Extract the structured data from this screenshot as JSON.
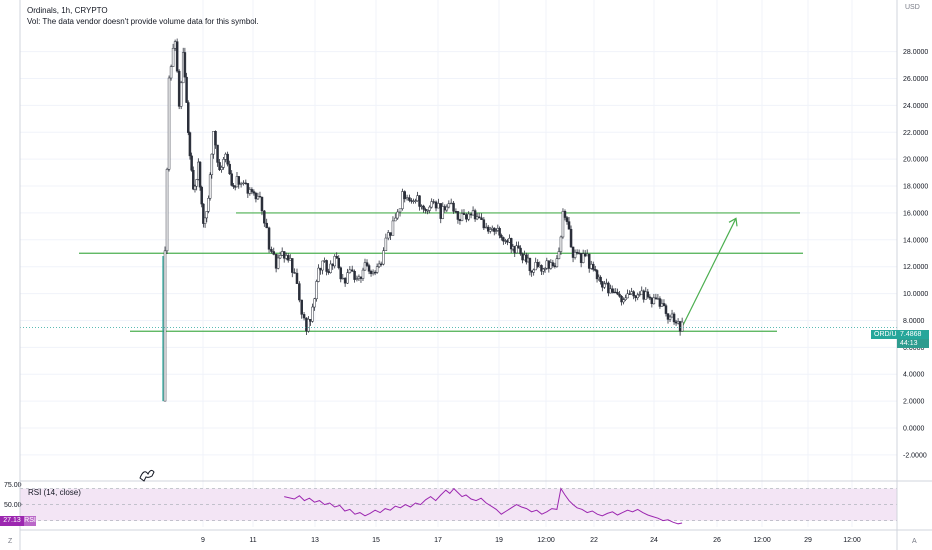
{
  "legend": {
    "symbol_line": "Ordinals, 1h, CRYPTO",
    "volume_note": "Vol: The data vendor doesn't provide volume data for this symbol."
  },
  "currency_label": "USD",
  "price_axis": {
    "ticks": [
      "28.0000",
      "26.0000",
      "24.0000",
      "22.0000",
      "20.0000",
      "18.0000",
      "16.0000",
      "14.0000",
      "12.0000",
      "10.0000",
      "8.0000",
      "6.0000",
      "4.0000",
      "2.0000",
      "0.0000",
      "-2.0000"
    ]
  },
  "time_axis": {
    "ticks": [
      "9",
      "11",
      "13",
      "15",
      "17",
      "19",
      "12:00",
      "22",
      "24",
      "26",
      "12:00",
      "29",
      "12:00"
    ]
  },
  "current_price": {
    "symbol_label": "ORD/USD",
    "value": "7.4868",
    "countdown": "44:13",
    "color": "#26a69a"
  },
  "rsi": {
    "title": "RSI (14, close)",
    "ticks": [
      "75.00",
      "50.00"
    ],
    "value": "27.13",
    "tag": "RSI",
    "color": "#9c27b0",
    "band_color": "#f3e5f5"
  },
  "drawings": {
    "line_color": "#4caf50",
    "horizontal_levels": [
      16.0,
      13.0,
      7.2
    ],
    "arrow_target": 15.6
  },
  "chart_data": {
    "type": "candlestick",
    "y_axis_range": [
      -2.9,
      30.5
    ],
    "rsi_axis_range": [
      22,
      77
    ],
    "bullish_color": "#26a69a",
    "bearish_color": "#ef5350",
    "price_path": [
      [
        0.0,
        2.0
      ],
      [
        0.2,
        12.8
      ],
      [
        0.6,
        26
      ],
      [
        1.2,
        28.8
      ],
      [
        1.6,
        24
      ],
      [
        2.0,
        27.5
      ],
      [
        2.5,
        22
      ],
      [
        3.0,
        17.5
      ],
      [
        3.5,
        19.5
      ],
      [
        4.0,
        15.5
      ],
      [
        4.5,
        17
      ],
      [
        5.0,
        22.5
      ],
      [
        5.6,
        19
      ],
      [
        6.2,
        20.5
      ],
      [
        6.8,
        17.8
      ],
      [
        7.5,
        18.5
      ],
      [
        8.2,
        18
      ],
      [
        9.0,
        17.5
      ],
      [
        9.8,
        16.5
      ],
      [
        10.5,
        13.5
      ],
      [
        11.2,
        12.2
      ],
      [
        12.0,
        13
      ],
      [
        12.8,
        12
      ],
      [
        13.5,
        9.5
      ],
      [
        14.2,
        7.5
      ],
      [
        14.8,
        8.8
      ],
      [
        15.2,
        11
      ],
      [
        15.8,
        12.8
      ],
      [
        16.4,
        11.5
      ],
      [
        17.0,
        12.8
      ],
      [
        17.8,
        10.8
      ],
      [
        18.5,
        11.5
      ],
      [
        19.2,
        11
      ],
      [
        20.0,
        12
      ],
      [
        20.8,
        11.5
      ],
      [
        21.6,
        12.2
      ],
      [
        22.3,
        14.5
      ],
      [
        23.0,
        15.2
      ],
      [
        23.7,
        17.5
      ],
      [
        24.4,
        16.8
      ],
      [
        25.2,
        17
      ],
      [
        26.0,
        16.3
      ],
      [
        26.8,
        16.8
      ],
      [
        27.5,
        16
      ],
      [
        28.3,
        16.5
      ],
      [
        29.0,
        16
      ],
      [
        29.8,
        15.5
      ],
      [
        30.5,
        16
      ],
      [
        31.3,
        15.3
      ],
      [
        32.0,
        14.6
      ],
      [
        32.8,
        14.9
      ],
      [
        33.5,
        14.3
      ],
      [
        34.3,
        13.8
      ],
      [
        35.0,
        13.2
      ],
      [
        35.8,
        12.5
      ],
      [
        36.5,
        12
      ],
      [
        37.3,
        11.8
      ],
      [
        38.0,
        12.3
      ],
      [
        38.8,
        11.9
      ],
      [
        39.2,
        12.8
      ],
      [
        39.6,
        16
      ],
      [
        40.0,
        15.5
      ],
      [
        40.4,
        13.2
      ],
      [
        41.2,
        12.8
      ],
      [
        42.0,
        12.5
      ],
      [
        42.8,
        11.5
      ],
      [
        43.5,
        10.8
      ],
      [
        44.3,
        10
      ],
      [
        45.0,
        9.7
      ],
      [
        45.8,
        9.5
      ],
      [
        46.6,
        10
      ],
      [
        47.4,
        9.8
      ],
      [
        48.2,
        9.6
      ],
      [
        49.0,
        9.2
      ],
      [
        49.8,
        8.6
      ],
      [
        50.6,
        8.0
      ],
      [
        51.4,
        7.5
      ]
    ],
    "rsi_path": [
      [
        12.0,
        60
      ],
      [
        13.0,
        57
      ],
      [
        13.5,
        61
      ],
      [
        14.0,
        55
      ],
      [
        14.5,
        58
      ],
      [
        15.0,
        53
      ],
      [
        15.5,
        55
      ],
      [
        16.0,
        50
      ],
      [
        16.5,
        52
      ],
      [
        17.0,
        47
      ],
      [
        17.5,
        49
      ],
      [
        18.0,
        42
      ],
      [
        18.5,
        44
      ],
      [
        19.0,
        38
      ],
      [
        19.5,
        40
      ],
      [
        20.0,
        36
      ],
      [
        20.5,
        39
      ],
      [
        21.0,
        43
      ],
      [
        21.5,
        40
      ],
      [
        22.0,
        45
      ],
      [
        22.5,
        43
      ],
      [
        23.0,
        48
      ],
      [
        23.5,
        46
      ],
      [
        24.0,
        50
      ],
      [
        24.5,
        47
      ],
      [
        25.0,
        52
      ],
      [
        25.5,
        50
      ],
      [
        26.0,
        56
      ],
      [
        26.5,
        60
      ],
      [
        27.0,
        55
      ],
      [
        27.5,
        62
      ],
      [
        28.0,
        68
      ],
      [
        28.4,
        64
      ],
      [
        28.8,
        70
      ],
      [
        29.2,
        65
      ],
      [
        29.6,
        60
      ],
      [
        30.0,
        62
      ],
      [
        30.5,
        57
      ],
      [
        31.0,
        55
      ],
      [
        31.5,
        58
      ],
      [
        32.0,
        52
      ],
      [
        32.5,
        48
      ],
      [
        33.0,
        44
      ],
      [
        33.5,
        38
      ],
      [
        34.0,
        42
      ],
      [
        34.5,
        46
      ],
      [
        35.0,
        50
      ],
      [
        35.5,
        47
      ],
      [
        36.0,
        45
      ],
      [
        36.5,
        41
      ],
      [
        37.0,
        43
      ],
      [
        37.5,
        38
      ],
      [
        38.0,
        41
      ],
      [
        38.5,
        45
      ],
      [
        39.0,
        44
      ],
      [
        39.4,
        70
      ],
      [
        39.8,
        62
      ],
      [
        40.2,
        55
      ],
      [
        40.6,
        50
      ],
      [
        41.0,
        46
      ],
      [
        41.5,
        44
      ],
      [
        42.0,
        40
      ],
      [
        42.5,
        42
      ],
      [
        43.0,
        38
      ],
      [
        43.5,
        36
      ],
      [
        44.0,
        39
      ],
      [
        44.5,
        41
      ],
      [
        45.0,
        37
      ],
      [
        45.5,
        40
      ],
      [
        46.0,
        43
      ],
      [
        46.5,
        41
      ],
      [
        47.0,
        44
      ],
      [
        47.5,
        40
      ],
      [
        48.0,
        37
      ],
      [
        48.5,
        35
      ],
      [
        49.0,
        33
      ],
      [
        49.5,
        30
      ],
      [
        50.0,
        31
      ],
      [
        50.5,
        28
      ],
      [
        51.0,
        26
      ],
      [
        51.4,
        27
      ]
    ]
  }
}
